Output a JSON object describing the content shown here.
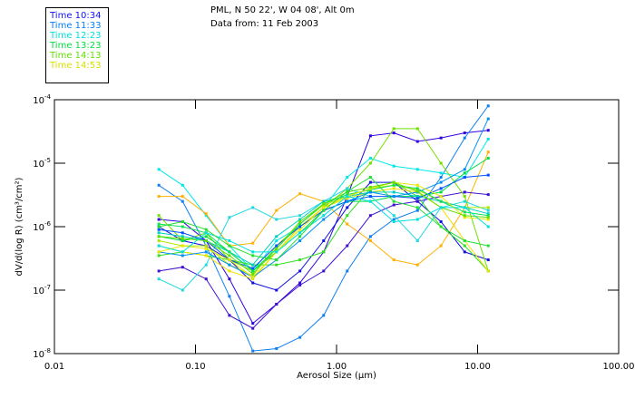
{
  "header": {
    "line1": "PML, N 50 22', W 04 08', Alt 0m",
    "line2": "Data from: 11 Feb 2003"
  },
  "chart_data": {
    "type": "line",
    "title": "PML, N 50 22', W 04 08', Alt 0m",
    "subtitle": "Data from: 11 Feb 2003",
    "xlabel": "Aerosol Size (µm)",
    "ylabel": "dV/d(log R) (cm³/cm²)",
    "xscale": "log",
    "yscale": "log",
    "xlim": [
      0.01,
      100
    ],
    "ylim": [
      1e-08,
      0.0001
    ],
    "xticks": [
      {
        "v": 0.01,
        "label": "0.01"
      },
      {
        "v": 0.1,
        "label": "0.10"
      },
      {
        "v": 1,
        "label": "1.00"
      },
      {
        "v": 10,
        "label": "10.00"
      },
      {
        "v": 100,
        "label": "100.00"
      }
    ],
    "yticks": [
      {
        "v": 0.0001,
        "base": "10",
        "exp": "-4"
      },
      {
        "v": 1e-05,
        "base": "10",
        "exp": "-5"
      },
      {
        "v": 1e-06,
        "base": "10",
        "exp": "-6"
      },
      {
        "v": 1e-07,
        "base": "10",
        "exp": "-7"
      },
      {
        "v": 1e-08,
        "base": "10",
        "exp": "-8"
      }
    ],
    "legend_position": "top-left",
    "legend": [
      {
        "label": "Time 10:34",
        "color": "#1010ff"
      },
      {
        "label": "Time 11:33",
        "color": "#0080ff"
      },
      {
        "label": "Time 12:23",
        "color": "#00e0e0"
      },
      {
        "label": "Time 13:23",
        "color": "#00e040"
      },
      {
        "label": "Time 14:13",
        "color": "#60e000"
      },
      {
        "label": "Time 14:53",
        "color": "#d8e000"
      }
    ],
    "x": [
      0.055,
      0.081,
      0.119,
      0.174,
      0.255,
      0.375,
      0.55,
      0.81,
      1.19,
      1.74,
      2.55,
      3.75,
      5.5,
      8.1,
      11.9
    ],
    "series": [
      {
        "name": "s1",
        "color": "#3000e0",
        "values": [
          1.3e-06,
          1.2e-06,
          6e-07,
          1.5e-07,
          3e-08,
          6e-08,
          1.3e-07,
          4e-07,
          3e-06,
          2.7e-05,
          3e-05,
          2.2e-05,
          2.5e-05,
          3e-05,
          3.3e-05
        ]
      },
      {
        "name": "s2",
        "color": "#1080f0",
        "values": [
          4.5e-06,
          2.5e-06,
          5e-07,
          8e-08,
          1.1e-08,
          1.2e-08,
          1.8e-08,
          4e-08,
          2e-07,
          7e-07,
          1.3e-06,
          1.8e-06,
          6e-06,
          2.5e-05,
          8e-05
        ]
      },
      {
        "name": "s3",
        "color": "#00e8e8",
        "values": [
          8e-06,
          4.5e-06,
          1.5e-06,
          5e-07,
          2e-07,
          6e-07,
          1e-06,
          2e-06,
          6e-06,
          1.2e-05,
          9e-06,
          8e-06,
          7e-06,
          6e-06,
          2.4e-05
        ]
      },
      {
        "name": "s4",
        "color": "#ffb000",
        "values": [
          3e-06,
          3e-06,
          1.6e-06,
          5e-07,
          5.5e-07,
          1.8e-06,
          3.3e-06,
          2.5e-06,
          1.1e-06,
          6e-07,
          3e-07,
          2.5e-07,
          5e-07,
          2e-06,
          1.5e-05
        ]
      },
      {
        "name": "s5",
        "color": "#1010e0",
        "values": [
          1e-06,
          6e-07,
          5e-07,
          3e-07,
          1.3e-07,
          1e-07,
          2e-07,
          6e-07,
          2e-06,
          5e-06,
          5e-06,
          2.5e-06,
          1.2e-06,
          4e-07,
          3e-07
        ]
      },
      {
        "name": "s6",
        "color": "#4010d0",
        "values": [
          2e-07,
          2.3e-07,
          1.5e-07,
          4e-08,
          2.5e-08,
          6e-08,
          1.2e-07,
          2e-07,
          5e-07,
          1.5e-06,
          2.2e-06,
          2.5e-06,
          3e-06,
          3.5e-06,
          3.2e-06
        ]
      },
      {
        "name": "s7",
        "color": "#70e000",
        "values": [
          1.5e-06,
          6e-07,
          8e-07,
          3e-07,
          2e-07,
          4e-07,
          1e-06,
          2e-06,
          4e-06,
          1e-05,
          3.5e-05,
          3.5e-05,
          1e-05,
          3e-06,
          2e-07
        ]
      },
      {
        "name": "s8",
        "color": "#00e040",
        "values": [
          7e-07,
          6e-07,
          7e-07,
          4e-07,
          2e-07,
          4e-07,
          8e-07,
          1.8e-06,
          2.5e-06,
          2.5e-06,
          3e-06,
          3e-06,
          3.5e-06,
          7e-06,
          1.2e-05
        ]
      },
      {
        "name": "s9",
        "color": "#20d8e0",
        "values": [
          1.5e-07,
          1e-07,
          2.5e-07,
          1.4e-06,
          2e-06,
          1.3e-06,
          1.5e-06,
          2.5e-06,
          4e-06,
          3e-06,
          1.5e-06,
          6e-07,
          2e-06,
          2.5e-06,
          1.8e-06
        ]
      },
      {
        "name": "s10",
        "color": "#30e020",
        "values": [
          3.5e-07,
          4e-07,
          3.5e-07,
          3e-07,
          2.5e-07,
          2.5e-07,
          3e-07,
          4e-07,
          1.5e-06,
          4e-06,
          5e-06,
          3e-06,
          1e-06,
          5e-07,
          2e-07
        ]
      },
      {
        "name": "s11",
        "color": "#f0e000",
        "values": [
          5e-07,
          4e-07,
          3.5e-07,
          2e-07,
          1.5e-07,
          4e-07,
          1e-06,
          2e-06,
          2.8e-06,
          3.5e-06,
          4e-06,
          3.5e-06,
          2e-06,
          6e-07,
          2e-07
        ]
      },
      {
        "name": "s12",
        "color": "#b0e800",
        "values": [
          6e-07,
          5e-07,
          5e-07,
          2.5e-07,
          1.7e-07,
          5e-07,
          1.1e-06,
          2.2e-06,
          3e-06,
          4e-06,
          4.5e-06,
          3.8e-06,
          2.5e-06,
          2e-06,
          2e-06
        ]
      },
      {
        "name": "s13",
        "color": "#00d0c0",
        "values": [
          8e-07,
          7e-07,
          6e-07,
          4e-07,
          2.5e-07,
          7e-07,
          1.3e-06,
          2.5e-06,
          3e-06,
          3.5e-06,
          3.5e-06,
          3e-06,
          2.5e-06,
          2e-06,
          1.6e-06
        ]
      },
      {
        "name": "s14",
        "color": "#0050ff",
        "values": [
          9e-07,
          8e-07,
          6e-07,
          3e-07,
          2.2e-07,
          5e-07,
          1e-06,
          1.8e-06,
          2.5e-06,
          3e-06,
          3e-06,
          2.8e-06,
          4e-06,
          6e-06,
          6.5e-06
        ]
      },
      {
        "name": "s15",
        "color": "#0090f0",
        "values": [
          4e-07,
          3.5e-07,
          4e-07,
          2.5e-07,
          1.6e-07,
          3e-07,
          6e-07,
          1.3e-06,
          2.5e-06,
          3.5e-06,
          3e-06,
          3.5e-06,
          5e-06,
          8e-06,
          5e-05
        ]
      },
      {
        "name": "s16",
        "color": "#10e050",
        "values": [
          1.1e-06,
          1e-06,
          8e-07,
          4e-07,
          2e-07,
          4.5e-07,
          1.1e-06,
          2.3e-06,
          3.2e-06,
          3.8e-06,
          4.5e-06,
          4e-06,
          2.5e-06,
          1.7e-06,
          1.5e-06
        ]
      },
      {
        "name": "s17",
        "color": "#e8e800",
        "values": [
          4e-07,
          5e-07,
          4.5e-07,
          3e-07,
          1.6e-07,
          4e-07,
          9e-07,
          2e-06,
          3e-06,
          4e-06,
          5e-06,
          4.5e-06,
          3e-06,
          1.4e-06,
          1.3e-06
        ]
      },
      {
        "name": "s18",
        "color": "#60e000",
        "values": [
          7e-07,
          6.5e-07,
          6e-07,
          3.5e-07,
          1.8e-07,
          4.5e-07,
          1.2e-06,
          2.3e-06,
          3.5e-06,
          4.2e-06,
          5e-06,
          3.6e-06,
          2e-06,
          1.5e-06,
          1.4e-06
        ]
      },
      {
        "name": "s19",
        "color": "#00e0e0",
        "values": [
          5e-07,
          4e-07,
          8e-07,
          6e-07,
          4e-07,
          4e-07,
          8e-07,
          1.5e-06,
          3e-06,
          2.5e-06,
          1.2e-06,
          1.3e-06,
          2e-06,
          2e-06,
          1e-06
        ]
      },
      {
        "name": "s20",
        "color": "#20e030",
        "values": [
          1e-06,
          1.2e-06,
          9e-07,
          5e-07,
          3.5e-07,
          3e-07,
          7e-07,
          1.8e-06,
          3.6e-06,
          6e-06,
          2.5e-06,
          2e-06,
          1e-06,
          6e-07,
          5e-07
        ]
      }
    ]
  }
}
